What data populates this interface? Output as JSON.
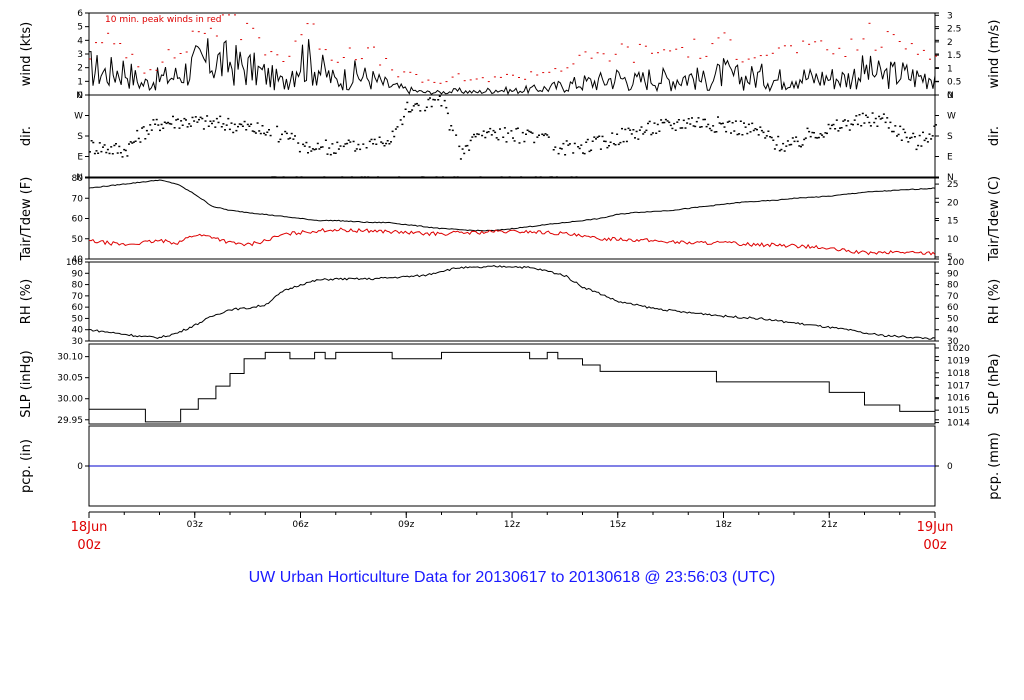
{
  "title": "UW Urban Horticulture Data for 20130617  to  20130618 @ 23:56:03  (UTC)",
  "colors": {
    "series_black": "#000000",
    "series_red": "#dd0000",
    "pcp_line": "#0000cc",
    "title": "#1a1aff"
  },
  "x_axis": {
    "unit": "hours since 18Jun 00z (UTC)",
    "range": [
      0,
      24
    ],
    "ticks": [
      {
        "h": 0,
        "label": "18Jun",
        "label2": "00z",
        "major": true
      },
      {
        "h": 3,
        "label": "03z"
      },
      {
        "h": 6,
        "label": "06z"
      },
      {
        "h": 9,
        "label": "09z"
      },
      {
        "h": 12,
        "label": "12z"
      },
      {
        "h": 15,
        "label": "15z"
      },
      {
        "h": 18,
        "label": "18z"
      },
      {
        "h": 21,
        "label": "21z"
      },
      {
        "h": 24,
        "label": "19Jun",
        "label2": "00z",
        "major": true
      }
    ]
  },
  "chart_data": [
    {
      "type": "line",
      "panel": "wind",
      "annotation": "10 min. peak winds in red",
      "ylabel_left": "wind (kts)",
      "ylabel_right": "wind (m/s)",
      "ylim": [
        0,
        6
      ],
      "yticks_left": [
        0,
        1,
        2,
        3,
        4,
        5,
        6
      ],
      "yticks_right": [
        {
          "v": 0,
          "label": "0"
        },
        {
          "v": 0.5,
          "label": "0.5"
        },
        {
          "v": 1,
          "label": "1"
        },
        {
          "v": 1.5,
          "label": "1.5"
        },
        {
          "v": 2,
          "label": "2"
        },
        {
          "v": 2.5,
          "label": "2.5"
        },
        {
          "v": 3,
          "label": "3"
        }
      ],
      "right_scale": 0.5144,
      "series": [
        {
          "style": "line",
          "color": "#000000",
          "x": [
            0,
            0.5,
            1,
            1.5,
            2,
            2.5,
            3,
            3.5,
            4,
            4.5,
            5,
            5.5,
            6,
            6.5,
            7,
            7.5,
            8,
            8.5,
            9,
            9.5,
            10,
            10.5,
            11,
            11.5,
            12,
            12.5,
            13,
            13.5,
            14,
            14.5,
            15,
            15.5,
            16,
            16.5,
            17,
            17.5,
            18,
            18.5,
            19,
            19.5,
            20,
            20.5,
            21,
            21.5,
            22,
            22.5,
            23,
            23.5,
            24
          ],
          "y": [
            2.0,
            1.6,
            1.9,
            0.8,
            1.2,
            1.4,
            2.2,
            2.5,
            2.3,
            2.0,
            1.5,
            0.9,
            2.8,
            2.0,
            1.0,
            1.5,
            1.2,
            0.7,
            0.4,
            0.2,
            0.2,
            0.3,
            0.2,
            0.4,
            0.3,
            0.4,
            0.5,
            0.7,
            0.9,
            1.0,
            1.3,
            1.0,
            1.3,
            1.1,
            1.4,
            1.0,
            1.6,
            1.2,
            1.4,
            1.1,
            1.5,
            1.2,
            1.3,
            1.2,
            1.8,
            1.4,
            1.6,
            1.3,
            1.5
          ]
        },
        {
          "style": "dots",
          "color": "#dd0000",
          "x": [
            0,
            0.5,
            1,
            1.5,
            2,
            2.5,
            3,
            3.5,
            4,
            4.5,
            5,
            5.5,
            6,
            6.5,
            7,
            7.5,
            8,
            8.5,
            9,
            9.5,
            10,
            10.5,
            11,
            11.5,
            12,
            12.5,
            13,
            13.5,
            14,
            14.5,
            15,
            15.5,
            16,
            16.5,
            17,
            17.5,
            18,
            18.5,
            19,
            19.5,
            20,
            20.5,
            21,
            21.5,
            22,
            22.5,
            23,
            23.5,
            24
          ],
          "y": [
            3.2,
            3.8,
            3.6,
            2.0,
            2.5,
            3.0,
            4.5,
            5.2,
            5.5,
            4.8,
            3.8,
            2.5,
            4.8,
            4.2,
            2.8,
            3.5,
            3.0,
            2.0,
            1.5,
            1.0,
            1.0,
            1.3,
            1.0,
            1.5,
            1.3,
            1.6,
            1.8,
            2.2,
            2.6,
            2.8,
            3.3,
            3.0,
            3.4,
            3.2,
            3.6,
            3.0,
            3.8,
            3.2,
            3.5,
            3.0,
            3.7,
            3.2,
            3.3,
            3.2,
            4.5,
            3.8,
            4.0,
            3.4,
            3.6
          ]
        }
      ]
    },
    {
      "type": "scatter",
      "panel": "direction",
      "ylabel_left": "dir.",
      "ylabel_right": "dir.",
      "ylim": [
        0,
        360
      ],
      "yticks_left": [
        {
          "v": 0,
          "label": "N"
        },
        {
          "v": 90,
          "label": "E"
        },
        {
          "v": 180,
          "label": "S"
        },
        {
          "v": 270,
          "label": "W"
        },
        {
          "v": 360,
          "label": "N"
        }
      ],
      "series": [
        {
          "style": "points",
          "color": "#000000",
          "x": [
            0,
            0.5,
            1,
            1.5,
            2,
            2.5,
            3,
            3.5,
            4,
            4.5,
            5,
            5.5,
            6,
            6.5,
            7,
            7.5,
            8,
            8.5,
            9,
            9.5,
            10,
            10.5,
            11,
            11.5,
            12,
            12.5,
            13,
            13.5,
            14,
            14.5,
            15,
            15.5,
            16,
            16.5,
            17,
            17.5,
            18,
            18.5,
            19,
            19.5,
            20,
            20.5,
            21,
            21.5,
            22,
            22.5,
            23,
            23.5,
            24
          ],
          "y": [
            140,
            130,
            120,
            200,
            240,
            250,
            245,
            240,
            235,
            220,
            200,
            190,
            140,
            135,
            130,
            140,
            150,
            180,
            300,
            320,
            340,
            100,
            190,
            200,
            180,
            200,
            150,
            130,
            140,
            150,
            180,
            200,
            220,
            230,
            250,
            240,
            230,
            220,
            200,
            150,
            140,
            200,
            210,
            240,
            250,
            260,
            200,
            150,
            220
          ]
        }
      ]
    },
    {
      "type": "line",
      "panel": "temperature",
      "ylabel_left": "Tair/Tdew (F)",
      "ylabel_right": "Tair/Tdew (C)",
      "ylim": [
        40,
        80
      ],
      "yticks_left": [
        40,
        50,
        60,
        70,
        80
      ],
      "yticks_right": [
        {
          "v": 5,
          "label": "5"
        },
        {
          "v": 10,
          "label": "10"
        },
        {
          "v": 15,
          "label": "15"
        },
        {
          "v": 20,
          "label": "20"
        },
        {
          "v": 25,
          "label": "25"
        }
      ],
      "series": [
        {
          "name": "Tair",
          "style": "line",
          "color": "#000000",
          "x": [
            0,
            0.5,
            1,
            1.5,
            2,
            2.5,
            3,
            3.5,
            4,
            4.5,
            5,
            5.5,
            6,
            6.5,
            7,
            7.5,
            8,
            8.5,
            9,
            9.5,
            10,
            10.5,
            11,
            11.5,
            12,
            12.5,
            13,
            13.5,
            14,
            14.5,
            15,
            15.5,
            16,
            16.5,
            17,
            17.5,
            18,
            18.5,
            19,
            19.5,
            20,
            20.5,
            21,
            21.5,
            22,
            22.5,
            23,
            23.5,
            24
          ],
          "y": [
            75,
            76,
            77,
            78,
            79,
            77,
            72,
            66,
            64,
            63,
            62,
            61,
            60,
            59,
            59,
            58.5,
            58,
            58,
            57,
            56,
            55,
            54.5,
            54,
            54,
            55,
            56,
            57,
            58,
            59,
            60,
            62,
            63,
            63.5,
            64,
            65,
            66,
            67,
            68,
            68.5,
            69,
            70,
            70.5,
            71,
            72,
            73,
            73.5,
            74,
            74.5,
            75
          ]
        },
        {
          "name": "Tdew",
          "style": "line",
          "color": "#dd0000",
          "x": [
            0,
            0.5,
            1,
            1.5,
            2,
            2.5,
            3,
            3.5,
            4,
            4.5,
            5,
            5.5,
            6,
            6.5,
            7,
            7.5,
            8,
            8.5,
            9,
            9.5,
            10,
            10.5,
            11,
            11.5,
            12,
            12.5,
            13,
            13.5,
            14,
            14.5,
            15,
            15.5,
            16,
            16.5,
            17,
            17.5,
            18,
            18.5,
            19,
            19.5,
            20,
            20.5,
            21,
            21.5,
            22,
            22.5,
            23,
            23.5,
            24
          ],
          "y": [
            49,
            48,
            47,
            48,
            49,
            48,
            52,
            51,
            48,
            47,
            49,
            52,
            53,
            54,
            54.5,
            54,
            54,
            53.5,
            53,
            52.5,
            52.5,
            53,
            53,
            53.5,
            53.5,
            53.5,
            53,
            52.5,
            51,
            50,
            50,
            49.5,
            49,
            48.5,
            48,
            48,
            48,
            47.5,
            47,
            47,
            46.5,
            46,
            45,
            44,
            43,
            43,
            43.5,
            43,
            43
          ]
        }
      ]
    },
    {
      "type": "line",
      "panel": "rh",
      "ylabel_left": "RH (%)",
      "ylabel_right": "RH (%)",
      "ylim": [
        30,
        100
      ],
      "yticks_left": [
        30,
        40,
        50,
        60,
        70,
        80,
        90,
        100
      ],
      "yticks_right": [
        {
          "v": 30,
          "label": "30"
        },
        {
          "v": 40,
          "label": "40"
        },
        {
          "v": 50,
          "label": "50"
        },
        {
          "v": 60,
          "label": "60"
        },
        {
          "v": 70,
          "label": "70"
        },
        {
          "v": 80,
          "label": "80"
        },
        {
          "v": 90,
          "label": "90"
        },
        {
          "v": 100,
          "label": "100"
        }
      ],
      "series": [
        {
          "style": "line",
          "color": "#000000",
          "x": [
            0,
            0.5,
            1,
            1.5,
            2,
            2.5,
            3,
            3.5,
            4,
            4.5,
            5,
            5.5,
            6,
            6.5,
            7,
            7.5,
            8,
            8.5,
            9,
            9.5,
            10,
            10.5,
            11,
            11.5,
            12,
            12.5,
            13,
            13.5,
            14,
            14.5,
            15,
            15.5,
            16,
            16.5,
            17,
            17.5,
            18,
            18.5,
            19,
            19.5,
            20,
            20.5,
            21,
            21.5,
            22,
            22.5,
            23,
            23.5,
            24
          ],
          "y": [
            40,
            38,
            36,
            34,
            33,
            37,
            44,
            52,
            58,
            59,
            62,
            74,
            80,
            84,
            85,
            85,
            85,
            86,
            87,
            88,
            92,
            95,
            95,
            96,
            96,
            95,
            92,
            88,
            78,
            72,
            65,
            62,
            59,
            57,
            55,
            54,
            52,
            51,
            50,
            48,
            46,
            44,
            42,
            40,
            37,
            35,
            34,
            33,
            32
          ]
        }
      ]
    },
    {
      "type": "line",
      "panel": "slp",
      "ylabel_left": "SLP (inHg)",
      "ylabel_right": "SLP (hPa)",
      "ylim": [
        29.94,
        30.13
      ],
      "yticks_left": [
        {
          "v": 29.95,
          "label": "29.95"
        },
        {
          "v": 30.0,
          "label": "30.00"
        },
        {
          "v": 30.05,
          "label": "30.05"
        },
        {
          "v": 30.1,
          "label": "30.10"
        }
      ],
      "yticks_right": [
        {
          "v": 1014,
          "label": "1014"
        },
        {
          "v": 1015,
          "label": "1015"
        },
        {
          "v": 1016,
          "label": "1016"
        },
        {
          "v": 1017,
          "label": "1017"
        },
        {
          "v": 1018,
          "label": "1018"
        },
        {
          "v": 1019,
          "label": "1019"
        },
        {
          "v": 1020,
          "label": "1020"
        }
      ],
      "series": [
        {
          "style": "step",
          "color": "#000000",
          "x": [
            0,
            1.6,
            2.6,
            3.1,
            3.6,
            4.0,
            4.4,
            5.0,
            5.7,
            6.4,
            6.7,
            7.0,
            8.0,
            8.6,
            9.1,
            10.0,
            11.0,
            12.0,
            12.5,
            13.0,
            13.3,
            13.7,
            14.0,
            14.5,
            15.5,
            17.0,
            17.8,
            19.0,
            20.5,
            21.0,
            22.0,
            23.0,
            23.5,
            24
          ],
          "y": [
            29.975,
            29.945,
            29.975,
            30.0,
            30.03,
            30.06,
            30.095,
            30.11,
            30.095,
            30.11,
            30.095,
            30.11,
            30.11,
            30.095,
            30.095,
            30.11,
            30.11,
            30.11,
            30.095,
            30.11,
            30.095,
            30.095,
            30.08,
            30.065,
            30.065,
            30.065,
            30.04,
            30.04,
            30.04,
            30.015,
            29.985,
            29.97,
            29.97,
            29.945
          ]
        }
      ]
    },
    {
      "type": "line",
      "panel": "precip",
      "ylabel_left": "pcp. (in)",
      "ylabel_right": "pcp. (mm)",
      "ylim": [
        -1,
        1
      ],
      "yticks_left": [
        {
          "v": 0,
          "label": "0"
        }
      ],
      "yticks_right": [
        {
          "v": 0,
          "label": "0"
        }
      ],
      "series": [
        {
          "style": "line",
          "color": "#0000cc",
          "x": [
            0,
            24
          ],
          "y": [
            0,
            0
          ]
        }
      ]
    }
  ]
}
